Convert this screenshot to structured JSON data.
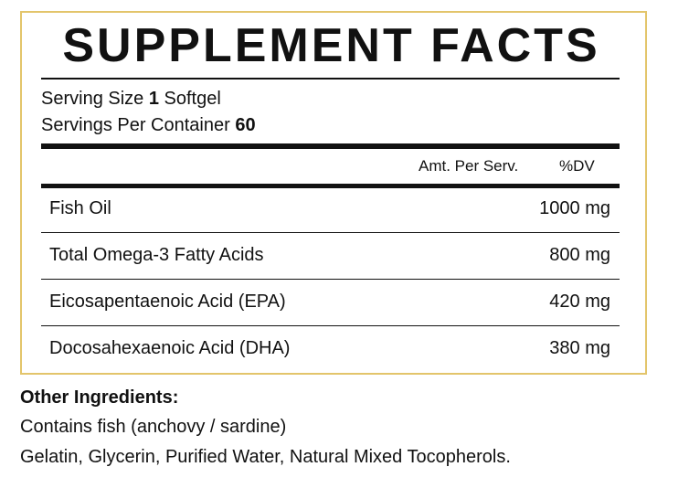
{
  "label": {
    "title": "SUPPLEMENT FACTS",
    "serving_size": {
      "label": "Serving Size",
      "amount": "1",
      "unit": "Softgel"
    },
    "servings_per_container": {
      "label": "Servings Per Container",
      "amount": "60"
    },
    "columns": [
      "Amt. Per Serv.",
      "%DV"
    ],
    "rows": [
      [
        "Fish Oil",
        "1000 mg"
      ],
      [
        "Total Omega-3 Fatty Acids",
        "800 mg"
      ],
      [
        "Eicosapentaenoic Acid (EPA)",
        "420 mg"
      ],
      [
        "Docosahexaenoic Acid (DHA)",
        "380 mg"
      ]
    ]
  },
  "other_ingredients": {
    "title": "Other Ingredients:",
    "lines": [
      "Contains fish (anchovy / sardine)",
      "Gelatin, Glycerin, Purified Water, Natural Mixed Tocopherols."
    ]
  }
}
